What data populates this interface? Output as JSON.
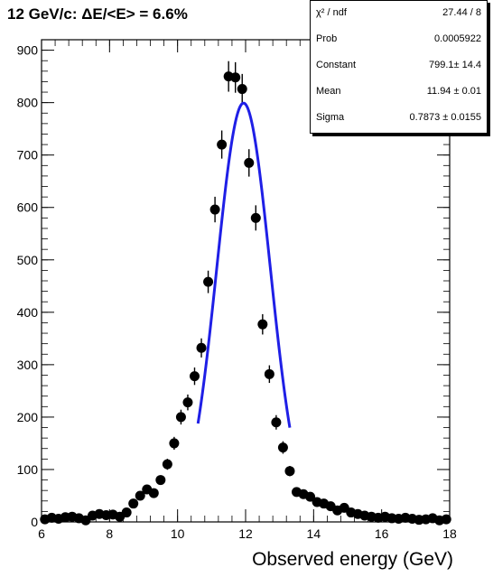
{
  "title": "12 GeV/c: ΔE/<E> = 6.6%",
  "stats_box": [
    {
      "key": "χ² / ndf",
      "value": "27.44 / 8"
    },
    {
      "key": "Prob",
      "value": "0.0005922"
    },
    {
      "key": "Constant",
      "value": "799.1± 14.4"
    },
    {
      "key": "Mean",
      "value": "11.94 ± 0.01"
    },
    {
      "key": "Sigma",
      "value": "0.7873 ± 0.0155"
    }
  ],
  "chart_data": {
    "type": "scatter",
    "xlabel": "Observed energy (GeV)",
    "ylabel": "",
    "xlim": [
      6,
      18
    ],
    "ylim": [
      0,
      920
    ],
    "xticks": [
      6,
      8,
      10,
      12,
      14,
      16,
      18
    ],
    "yticks": [
      0,
      100,
      200,
      300,
      400,
      500,
      600,
      700,
      800,
      900
    ],
    "series": [
      {
        "kind": "points",
        "color": "#000000",
        "x": [
          6.1,
          6.3,
          6.5,
          6.7,
          6.9,
          7.1,
          7.3,
          7.5,
          7.7,
          7.9,
          8.1,
          8.3,
          8.5,
          8.7,
          8.9,
          9.1,
          9.3,
          9.5,
          9.7,
          9.9,
          10.1,
          10.3,
          10.5,
          10.7,
          10.9,
          11.1,
          11.3,
          11.5,
          11.7,
          11.9,
          12.1,
          12.3,
          12.5,
          12.7,
          12.9,
          13.1,
          13.3,
          13.5,
          13.7,
          13.9,
          14.1,
          14.3,
          14.5,
          14.7,
          14.9,
          15.1,
          15.3,
          15.5,
          15.7,
          15.9,
          16.1,
          16.3,
          16.5,
          16.7,
          16.9,
          17.1,
          17.3,
          17.5,
          17.7,
          17.9
        ],
        "y": [
          5,
          8,
          6,
          9,
          10,
          7,
          3,
          12,
          15,
          13,
          14,
          10,
          18,
          35,
          50,
          62,
          55,
          80,
          110,
          150,
          200,
          228,
          278,
          332,
          458,
          596,
          720,
          850,
          848,
          826,
          685,
          580,
          377,
          282,
          190,
          142,
          97,
          57,
          53,
          48,
          38,
          35,
          30,
          22,
          27,
          18,
          15,
          12,
          10,
          8,
          10,
          7,
          6,
          8,
          6,
          4,
          5,
          7,
          3,
          5
        ]
      },
      {
        "kind": "fit",
        "label": "gaus",
        "color": "#1f1fe6",
        "constant": 799.1,
        "mean": 11.94,
        "sigma": 0.7873,
        "range": [
          10.6,
          13.3
        ]
      }
    ]
  }
}
